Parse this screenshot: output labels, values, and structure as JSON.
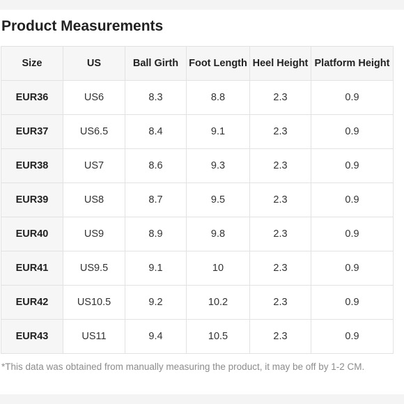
{
  "title": "Product Measurements",
  "columns": [
    "Size",
    "US",
    "Ball Girth",
    "Foot Length",
    "Heel Height",
    "Platform Height"
  ],
  "rows": [
    [
      "EUR36",
      "US6",
      "8.3",
      "8.8",
      "2.3",
      "0.9"
    ],
    [
      "EUR37",
      "US6.5",
      "8.4",
      "9.1",
      "2.3",
      "0.9"
    ],
    [
      "EUR38",
      "US7",
      "8.6",
      "9.3",
      "2.3",
      "0.9"
    ],
    [
      "EUR39",
      "US8",
      "8.7",
      "9.5",
      "2.3",
      "0.9"
    ],
    [
      "EUR40",
      "US9",
      "8.9",
      "9.8",
      "2.3",
      "0.9"
    ],
    [
      "EUR41",
      "US9.5",
      "9.1",
      "10",
      "2.3",
      "0.9"
    ],
    [
      "EUR42",
      "US10.5",
      "9.2",
      "10.2",
      "2.3",
      "0.9"
    ],
    [
      "EUR43",
      "US11",
      "9.4",
      "10.5",
      "2.3",
      "0.9"
    ]
  ],
  "note": "*This data was obtained from manually measuring the product, it may be off by 1-2 CM."
}
